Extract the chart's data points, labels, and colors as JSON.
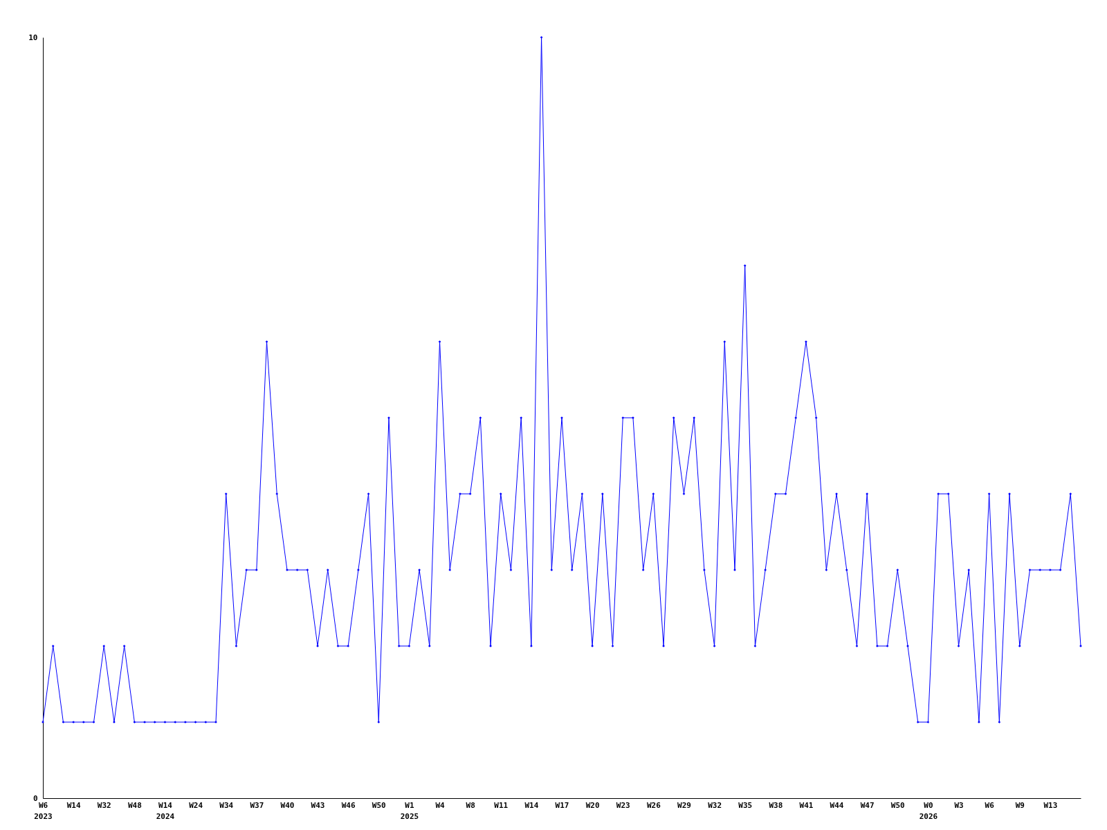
{
  "chart_data": {
    "type": "line",
    "categories": [
      "W6\n2023",
      null,
      null,
      "W14",
      null,
      null,
      "W32",
      null,
      null,
      "W48",
      null,
      null,
      "W14\n2024",
      null,
      null,
      "W24",
      null,
      null,
      "W34",
      null,
      null,
      "W37",
      null,
      null,
      "W40",
      null,
      null,
      "W43",
      null,
      null,
      "W46",
      null,
      null,
      "W50",
      null,
      null,
      "W1\n2025",
      null,
      null,
      "W4",
      null,
      null,
      "W8",
      null,
      null,
      "W11",
      null,
      null,
      "W14",
      null,
      null,
      "W17",
      null,
      null,
      "W20",
      null,
      null,
      "W23",
      null,
      null,
      "W26",
      null,
      null,
      "W29",
      null,
      null,
      "W32",
      null,
      null,
      "W35",
      null,
      null,
      "W38",
      null,
      null,
      "W41",
      null,
      null,
      "W44",
      null,
      null,
      "W47",
      null,
      null,
      "W50",
      null,
      null,
      "W0\n2026",
      null,
      null,
      "W3",
      null,
      null,
      "W6",
      null,
      null,
      "W9",
      null,
      null,
      "W13",
      null,
      null,
      null
    ],
    "series": [
      {
        "color": "#0000ff",
        "values": [
          1,
          2,
          1,
          1,
          1,
          1,
          2,
          1,
          2,
          1,
          1,
          1,
          1,
          1,
          1,
          1,
          1,
          1,
          4,
          2,
          3,
          3,
          6,
          4,
          3,
          3,
          3,
          2,
          3,
          2,
          2,
          3,
          4,
          1,
          5,
          2,
          2,
          3,
          2,
          6,
          3,
          4,
          4,
          5,
          2,
          4,
          3,
          5,
          2,
          10,
          3,
          5,
          3,
          4,
          2,
          4,
          2,
          5,
          5,
          3,
          4,
          2,
          5,
          4,
          5,
          3,
          2,
          6,
          3,
          7,
          2,
          3,
          4,
          4,
          5,
          6,
          5,
          3,
          4,
          3,
          2,
          4,
          2,
          2,
          3,
          2,
          1,
          1,
          4,
          4,
          2,
          3,
          1,
          4,
          1,
          4,
          2,
          3,
          3,
          3,
          3,
          4,
          2
        ]
      }
    ],
    "ylim": [
      0,
      10
    ],
    "yticks": [
      0,
      10
    ],
    "grid": false,
    "legend": false,
    "marker": "diamond",
    "line_style": "solid"
  }
}
